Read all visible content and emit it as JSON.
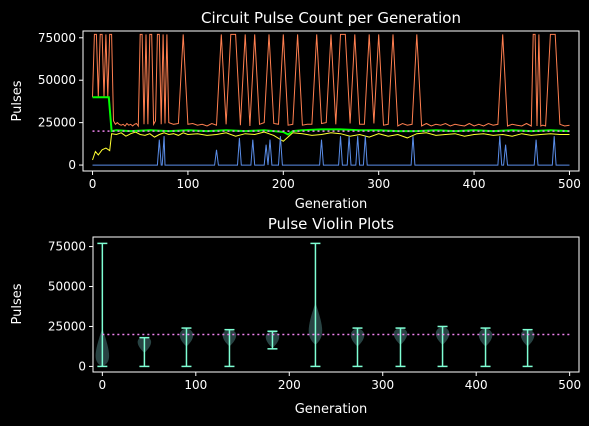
{
  "chart_data": [
    {
      "type": "line",
      "title": "Circuit Pulse Count per Generation",
      "xlabel": "Generation",
      "ylabel": "Pulses",
      "xlim": [
        -10,
        510
      ],
      "ylim": [
        -3500,
        79000
      ],
      "xticks": [
        0,
        100,
        200,
        300,
        400,
        500
      ],
      "yticks": [
        0,
        25000,
        50000,
        75000
      ],
      "xtick_labels": [
        "0",
        "100",
        "200",
        "300",
        "400",
        "500"
      ],
      "ytick_labels": [
        "0",
        "25000",
        "50000",
        "75000"
      ],
      "grid": false,
      "series": [
        {
          "color": "#ff7f50",
          "style": "thin-solid",
          "description_points": "max pulses",
          "x": [
            0,
            2,
            4,
            6,
            8,
            10,
            12,
            14,
            16,
            18,
            20,
            22,
            24,
            26,
            28,
            30,
            32,
            34,
            36,
            38,
            40,
            42,
            44,
            46,
            48,
            50,
            52,
            54,
            56,
            58,
            60,
            62,
            64,
            66,
            68,
            70,
            72,
            74,
            76,
            78,
            80,
            85,
            90,
            95,
            100,
            105,
            110,
            115,
            120,
            125,
            130,
            135,
            140,
            145,
            150,
            155,
            160,
            165,
            170,
            175,
            180,
            185,
            190,
            195,
            200,
            205,
            210,
            215,
            220,
            225,
            230,
            235,
            240,
            245,
            250,
            255,
            260,
            265,
            270,
            275,
            280,
            285,
            290,
            295,
            300,
            305,
            310,
            315,
            320,
            325,
            330,
            335,
            340,
            345,
            350,
            355,
            360,
            365,
            370,
            375,
            380,
            385,
            390,
            395,
            400,
            405,
            410,
            415,
            420,
            425,
            430,
            435,
            440,
            445,
            450,
            455,
            460,
            462,
            464,
            466,
            468,
            470,
            472,
            475,
            480,
            485,
            490,
            495,
            500
          ],
          "y": [
            40000,
            77000,
            77000,
            40000,
            77000,
            77000,
            40000,
            77000,
            40000,
            77000,
            77000,
            26000,
            24000,
            25000,
            24000,
            23500,
            24000,
            23000,
            24500,
            23500,
            24000,
            23000,
            24000,
            24500,
            23000,
            77000,
            77000,
            24000,
            77000,
            24000,
            77000,
            77000,
            24000,
            26000,
            77000,
            77000,
            24000,
            77000,
            24500,
            77000,
            25000,
            24000,
            24500,
            77000,
            24000,
            24500,
            23500,
            24000,
            23000,
            24500,
            23500,
            77000,
            24000,
            77000,
            77000,
            23500,
            77000,
            23000,
            77000,
            24000,
            25000,
            77000,
            24500,
            24000,
            77000,
            23500,
            24000,
            77000,
            23500,
            24000,
            24000,
            77000,
            24500,
            25000,
            77000,
            24000,
            77000,
            77000,
            24500,
            77000,
            24000,
            24000,
            77000,
            24500,
            77000,
            23500,
            24000,
            77000,
            23000,
            24500,
            23500,
            24000,
            77000,
            23000,
            24500,
            23000,
            24000,
            23500,
            24500,
            23000,
            24000,
            23500,
            23000,
            24500,
            23000,
            24000,
            23000,
            24500,
            23500,
            24000,
            77000,
            23000,
            24000,
            23500,
            23000,
            24500,
            23000,
            77000,
            77000,
            23000,
            77000,
            23000,
            23500,
            23000,
            77000,
            77000,
            24000,
            23000,
            23500
          ]
        },
        {
          "color": "#ffff33",
          "style": "thin-solid",
          "description_points": "min pulses",
          "x": [
            0,
            3,
            6,
            10,
            14,
            18,
            20,
            25,
            30,
            35,
            40,
            45,
            50,
            55,
            60,
            65,
            70,
            75,
            80,
            85,
            90,
            95,
            100,
            110,
            120,
            130,
            140,
            150,
            160,
            170,
            180,
            190,
            200,
            210,
            220,
            230,
            240,
            250,
            260,
            270,
            280,
            290,
            300,
            310,
            320,
            330,
            340,
            350,
            360,
            370,
            380,
            390,
            400,
            410,
            420,
            430,
            440,
            450,
            460,
            470,
            480,
            490,
            500
          ],
          "y": [
            3000,
            8000,
            6000,
            9000,
            10000,
            8500,
            18500,
            18000,
            19000,
            17000,
            18500,
            19500,
            18000,
            17500,
            18500,
            16500,
            18000,
            19000,
            18000,
            18500,
            17500,
            19000,
            18000,
            18500,
            17500,
            18000,
            19000,
            17000,
            18500,
            18000,
            19500,
            17500,
            14000,
            19000,
            18500,
            17500,
            18000,
            19000,
            18500,
            17000,
            18000,
            16500,
            18500,
            17000,
            18000,
            16000,
            18500,
            19000,
            17500,
            18000,
            18500,
            17000,
            18000,
            18500,
            17500,
            18000,
            17000,
            18500,
            17500,
            18000,
            18500,
            18000,
            18000
          ]
        },
        {
          "color": "#00ff00",
          "style": "thick-solid",
          "description_points": "median pulses",
          "x": [
            0,
            15,
            17,
            20,
            25,
            40,
            60,
            80,
            100,
            120,
            140,
            160,
            180,
            200,
            205,
            210,
            220,
            240,
            260,
            280,
            300,
            320,
            340,
            360,
            380,
            400,
            420,
            440,
            460,
            480,
            500
          ],
          "y": [
            40000,
            40000,
            40000,
            20000,
            20500,
            20000,
            20500,
            20000,
            20500,
            20000,
            20500,
            20000,
            20500,
            19500,
            18000,
            20000,
            20500,
            21000,
            21000,
            20500,
            20500,
            20000,
            20000,
            20500,
            20000,
            20500,
            20000,
            20500,
            20000,
            20500,
            20000
          ]
        },
        {
          "color": "#5a8de8",
          "style": "thin-solid",
          "description_points": "min-spike pulses",
          "x": [
            0,
            68,
            70,
            72,
            73,
            75,
            76,
            78,
            128,
            130,
            132,
            152,
            154,
            156,
            166,
            168,
            170,
            180,
            182,
            184,
            186,
            188,
            190,
            195,
            197,
            199,
            238,
            240,
            242,
            258,
            260,
            262,
            267,
            269,
            271,
            276,
            278,
            280,
            284,
            286,
            288,
            334,
            336,
            338,
            425,
            427,
            429,
            431,
            433,
            435,
            463,
            465,
            467,
            482,
            484,
            486,
            500
          ],
          "y": [
            0,
            0,
            15000,
            0,
            0,
            17000,
            0,
            0,
            0,
            9000,
            0,
            0,
            16000,
            0,
            0,
            15000,
            0,
            0,
            12000,
            0,
            15000,
            0,
            0,
            0,
            17000,
            0,
            0,
            15000,
            0,
            0,
            17000,
            0,
            0,
            17000,
            0,
            0,
            17000,
            0,
            0,
            17000,
            0,
            0,
            17000,
            0,
            0,
            17000,
            0,
            0,
            12000,
            0,
            0,
            15000,
            0,
            0,
            17000,
            0,
            0
          ]
        },
        {
          "color": "#ee82ee",
          "style": "dotted",
          "description_points": "target",
          "x": [
            0,
            500
          ],
          "y": [
            20000,
            20000
          ]
        }
      ]
    },
    {
      "type": "violin",
      "title": "Pulse Violin Plots",
      "xlabel": "Generation",
      "ylabel": "Pulses",
      "xlim": [
        -10,
        510
      ],
      "ylim": [
        -3500,
        81000
      ],
      "xticks": [
        0,
        100,
        200,
        300,
        400,
        500
      ],
      "yticks": [
        0,
        25000,
        50000,
        75000
      ],
      "xtick_labels": [
        "0",
        "100",
        "200",
        "300",
        "400",
        "500"
      ],
      "ytick_labels": [
        "0",
        "25000",
        "50000",
        "75000"
      ],
      "grid": false,
      "violin_color": "#2f4f4f",
      "whisker_color": "#7fffd4",
      "target_line": {
        "y": 20000,
        "x": [
          0,
          500
        ],
        "color": "#ee82ee"
      },
      "violins": [
        {
          "x": 0,
          "min": 0,
          "max": 77000,
          "median": 5000
        },
        {
          "x": 45,
          "min": 0,
          "max": 18000,
          "median": 16000
        },
        {
          "x": 90,
          "min": 0,
          "max": 24000,
          "median": 20000
        },
        {
          "x": 136,
          "min": 0,
          "max": 23000,
          "median": 20000
        },
        {
          "x": 182,
          "min": 11000,
          "max": 22000,
          "median": 19000
        },
        {
          "x": 228,
          "min": 0,
          "max": 77000,
          "median": 21000
        },
        {
          "x": 273,
          "min": 0,
          "max": 24000,
          "median": 20000
        },
        {
          "x": 319,
          "min": 0,
          "max": 24000,
          "median": 21000
        },
        {
          "x": 364,
          "min": 0,
          "max": 25000,
          "median": 21000
        },
        {
          "x": 410,
          "min": 0,
          "max": 24000,
          "median": 20000
        },
        {
          "x": 455,
          "min": 0,
          "max": 23000,
          "median": 20000
        }
      ]
    }
  ]
}
